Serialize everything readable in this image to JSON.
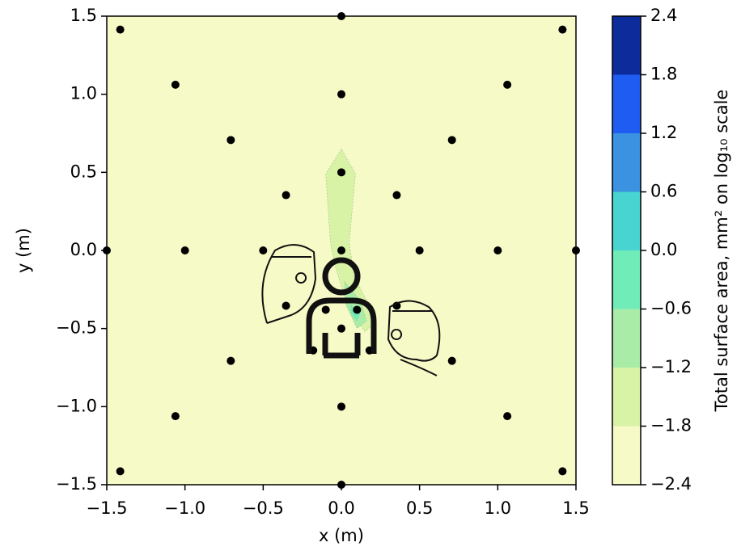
{
  "chart_data": {
    "type": "contour",
    "xlabel": "x (m)",
    "ylabel": "y (m)",
    "xlim": [
      -1.5,
      1.5
    ],
    "ylim": [
      -1.5,
      1.5
    ],
    "xticks": [
      {
        "value": -1.5,
        "label": "−1.5"
      },
      {
        "value": -1.0,
        "label": "−1.0"
      },
      {
        "value": -0.5,
        "label": "−0.5"
      },
      {
        "value": 0,
        "label": "0.0"
      },
      0.5,
      {
        "value": 1,
        "label": "1.0"
      },
      1.5
    ],
    "yticks": [
      {
        "value": -1.5,
        "label": "−1.5"
      },
      {
        "value": -1.0,
        "label": "−1.0"
      },
      {
        "value": -0.5,
        "label": "−0.5"
      },
      {
        "value": 0,
        "label": "0.0"
      },
      0.5,
      {
        "value": 1,
        "label": "1.0"
      },
      1.5
    ],
    "background": "#f6fac6",
    "regions": [
      {
        "color": "#d8f2a6",
        "x": [
          0,
          -0.1,
          -0.07,
          -0.04,
          0.04,
          0.15,
          0.21,
          0.17,
          0.08,
          0.05,
          0.09
        ],
        "y": [
          0.65,
          0.49,
          0.05,
          -0.1,
          -0.36,
          -0.52,
          -0.47,
          -0.34,
          -0.16,
          0.05,
          0.49
        ]
      },
      {
        "color": "#a8eca8",
        "x": [
          0.02,
          0.12,
          0.16,
          0.1,
          0.03
        ],
        "y": [
          -0.2,
          -0.32,
          -0.45,
          -0.5,
          -0.35
        ]
      },
      {
        "color": "#70ecb8",
        "x": [
          0.06,
          0.12,
          0.1,
          0.06
        ],
        "y": [
          -0.35,
          -0.4,
          -0.45,
          -0.4
        ]
      }
    ],
    "points": {
      "color": "#000000",
      "x": [
        0,
        0,
        0,
        0,
        0,
        0,
        0,
        0.5,
        1,
        1.5,
        -0.5,
        -1,
        -1.5,
        0.354,
        0.707,
        1.061,
        1.414,
        -0.354,
        -0.707,
        -1.061,
        -1.414,
        0.354,
        0.707,
        1.061,
        1.414,
        -0.354,
        -0.707,
        -1.061,
        -1.414,
        -0.1,
        0.1,
        -0.18,
        0.18
      ],
      "y": [
        1.5,
        1,
        0.5,
        0,
        -0.5,
        -1,
        -1.5,
        0,
        0,
        0,
        0,
        0,
        0,
        0.354,
        0.707,
        1.061,
        1.414,
        0.354,
        0.707,
        1.061,
        1.414,
        -0.354,
        -0.707,
        -1.061,
        -1.414,
        -0.354,
        -0.707,
        -1.061,
        -1.414,
        -0.38,
        -0.38,
        -0.64,
        -0.64
      ]
    },
    "colorbar": {
      "label": "Total surface area, mm² on log₁₀ scale",
      "ticks": [
        {
          "value": -2.4,
          "label": "−2.4"
        },
        {
          "value": -1.8,
          "label": "−1.8"
        },
        {
          "value": -1.2,
          "label": "−1.2"
        },
        {
          "value": -0.6,
          "label": "−0.6"
        },
        {
          "value": 0,
          "label": "0.0"
        },
        0.6,
        1.2,
        1.8,
        2.4
      ],
      "colors": [
        "#f6fac6",
        "#d8f2a6",
        "#a8eca8",
        "#70ecb8",
        "#48d4d0",
        "#3a92e0",
        "#1e5cf2",
        "#0c2c9c"
      ]
    }
  }
}
